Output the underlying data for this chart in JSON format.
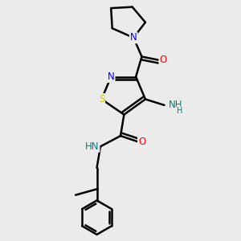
{
  "bg_color": "#ebebeb",
  "bond_color": "#000000",
  "bond_width": 1.8,
  "atom_colors": {
    "N": "#0000ff",
    "O": "#ff0000",
    "S": "#cccc00",
    "C": "#000000",
    "H": "#008080"
  },
  "font_size": 8.5
}
